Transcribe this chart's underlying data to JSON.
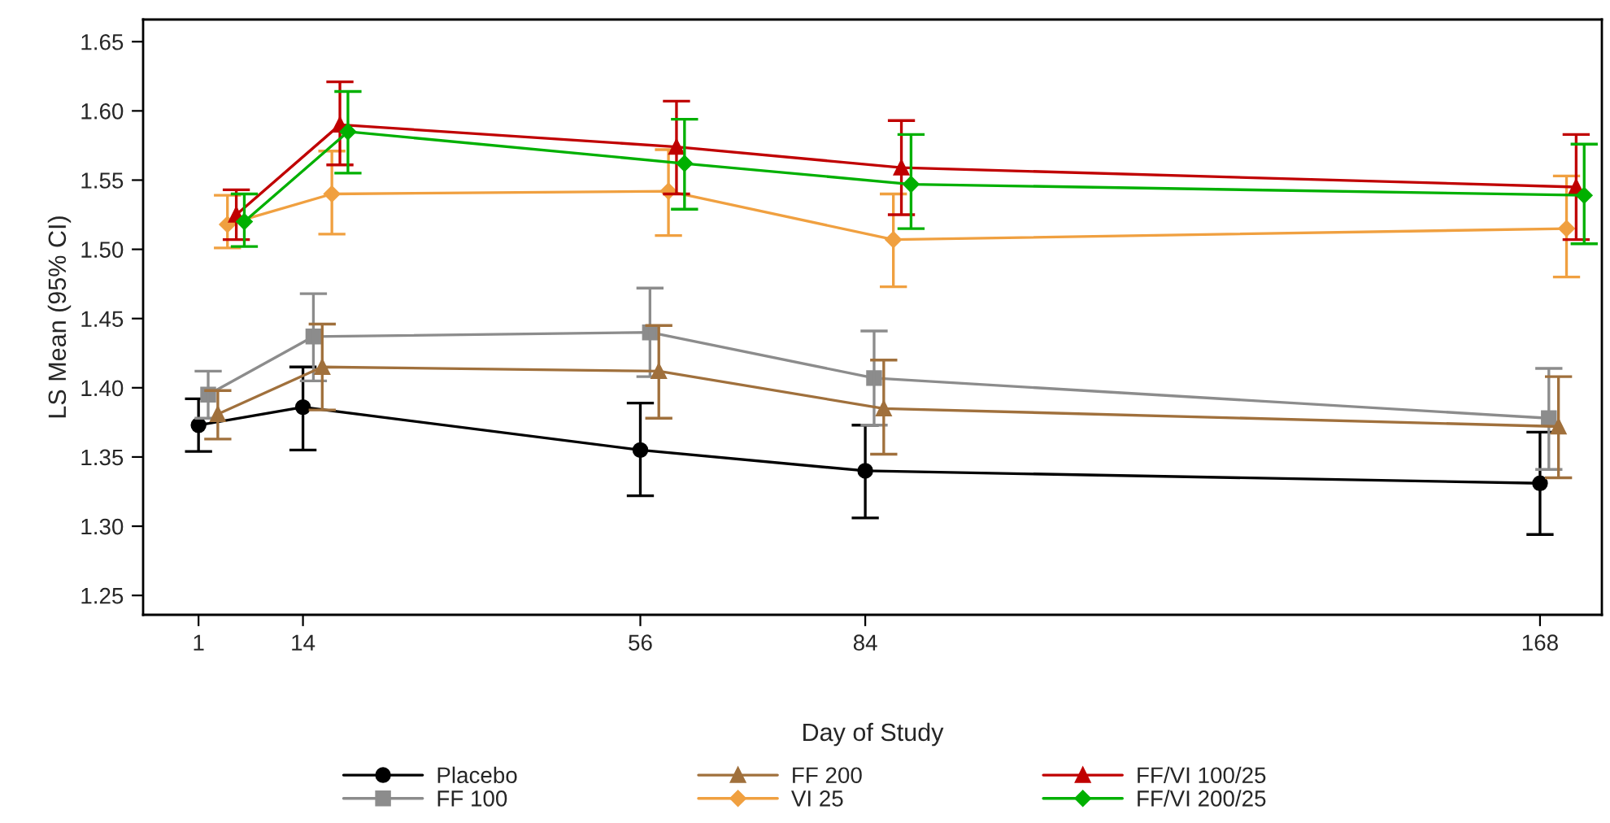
{
  "chart_data": {
    "type": "line",
    "xlabel": "Day of Study",
    "ylabel": "LS Mean (95% CI)",
    "xlim": [
      -5.9,
      175.7
    ],
    "ylim": [
      1.236,
      1.666
    ],
    "xticks": [
      1,
      14,
      56,
      84,
      168
    ],
    "yticks": [
      1.25,
      {
        "value": 1.3,
        "label": "1.30"
      },
      1.35,
      {
        "value": 1.4,
        "label": "1.40"
      },
      1.45,
      {
        "value": 1.5,
        "label": "1.50"
      },
      1.55,
      {
        "value": 1.6,
        "label": "1.60"
      },
      1.65
    ],
    "grid": false,
    "legend": "bottom",
    "series": [
      {
        "name": "Placebo",
        "color": "#000000",
        "marker": "circle",
        "x": [
          1,
          14,
          56,
          84,
          168
        ],
        "values": [
          1.373,
          1.386,
          1.355,
          1.34,
          1.331
        ],
        "errors": [
          [
            1.354,
            1.392
          ],
          [
            1.355,
            1.415
          ],
          [
            1.322,
            1.389
          ],
          [
            1.306,
            1.373
          ],
          [
            1.294,
            1.368
          ]
        ]
      },
      {
        "name": "FF 100",
        "color": "#8c8c8c",
        "marker": "square",
        "x": [
          2.2,
          15.3,
          57.2,
          85.1,
          169.1
        ],
        "values": [
          1.395,
          1.437,
          1.44,
          1.407,
          1.378
        ],
        "errors": [
          [
            1.378,
            1.412
          ],
          [
            1.405,
            1.468
          ],
          [
            1.408,
            1.472
          ],
          [
            1.373,
            1.441
          ],
          [
            1.341,
            1.414
          ]
        ]
      },
      {
        "name": "FF 200",
        "color": "#a0703c",
        "marker": "triangle",
        "x": [
          3.4,
          16.4,
          58.3,
          86.3,
          170.3
        ],
        "values": [
          1.381,
          1.415,
          1.412,
          1.385,
          1.372
        ],
        "errors": [
          [
            1.363,
            1.398
          ],
          [
            1.384,
            1.446
          ],
          [
            1.378,
            1.445
          ],
          [
            1.352,
            1.42
          ],
          [
            1.335,
            1.408
          ]
        ]
      },
      {
        "name": "VI 25",
        "color": "#f0a040",
        "marker": "diamond",
        "x": [
          4.6,
          17.6,
          59.5,
          87.5,
          171.3
        ],
        "values": [
          1.518,
          1.54,
          1.542,
          1.507,
          1.515
        ],
        "errors": [
          [
            1.501,
            1.539
          ],
          [
            1.511,
            1.571
          ],
          [
            1.51,
            1.572
          ],
          [
            1.473,
            1.54
          ],
          [
            1.48,
            1.553
          ]
        ]
      },
      {
        "name": "FF/VI 100/25",
        "color": "#c00000",
        "marker": "triangle",
        "x": [
          5.7,
          18.6,
          60.5,
          88.5,
          172.5
        ],
        "values": [
          1.525,
          1.59,
          1.574,
          1.559,
          1.545
        ],
        "errors": [
          [
            1.507,
            1.543
          ],
          [
            1.561,
            1.621
          ],
          [
            1.54,
            1.607
          ],
          [
            1.525,
            1.593
          ],
          [
            1.507,
            1.583
          ]
        ]
      },
      {
        "name": "FF/VI 200/25",
        "color": "#00b000",
        "marker": "diamond",
        "x": [
          6.7,
          19.6,
          61.5,
          89.7,
          173.5
        ],
        "values": [
          1.52,
          1.585,
          1.562,
          1.547,
          1.539
        ],
        "errors": [
          [
            1.502,
            1.54
          ],
          [
            1.555,
            1.614
          ],
          [
            1.529,
            1.594
          ],
          [
            1.515,
            1.583
          ],
          [
            1.504,
            1.576
          ]
        ]
      }
    ]
  }
}
